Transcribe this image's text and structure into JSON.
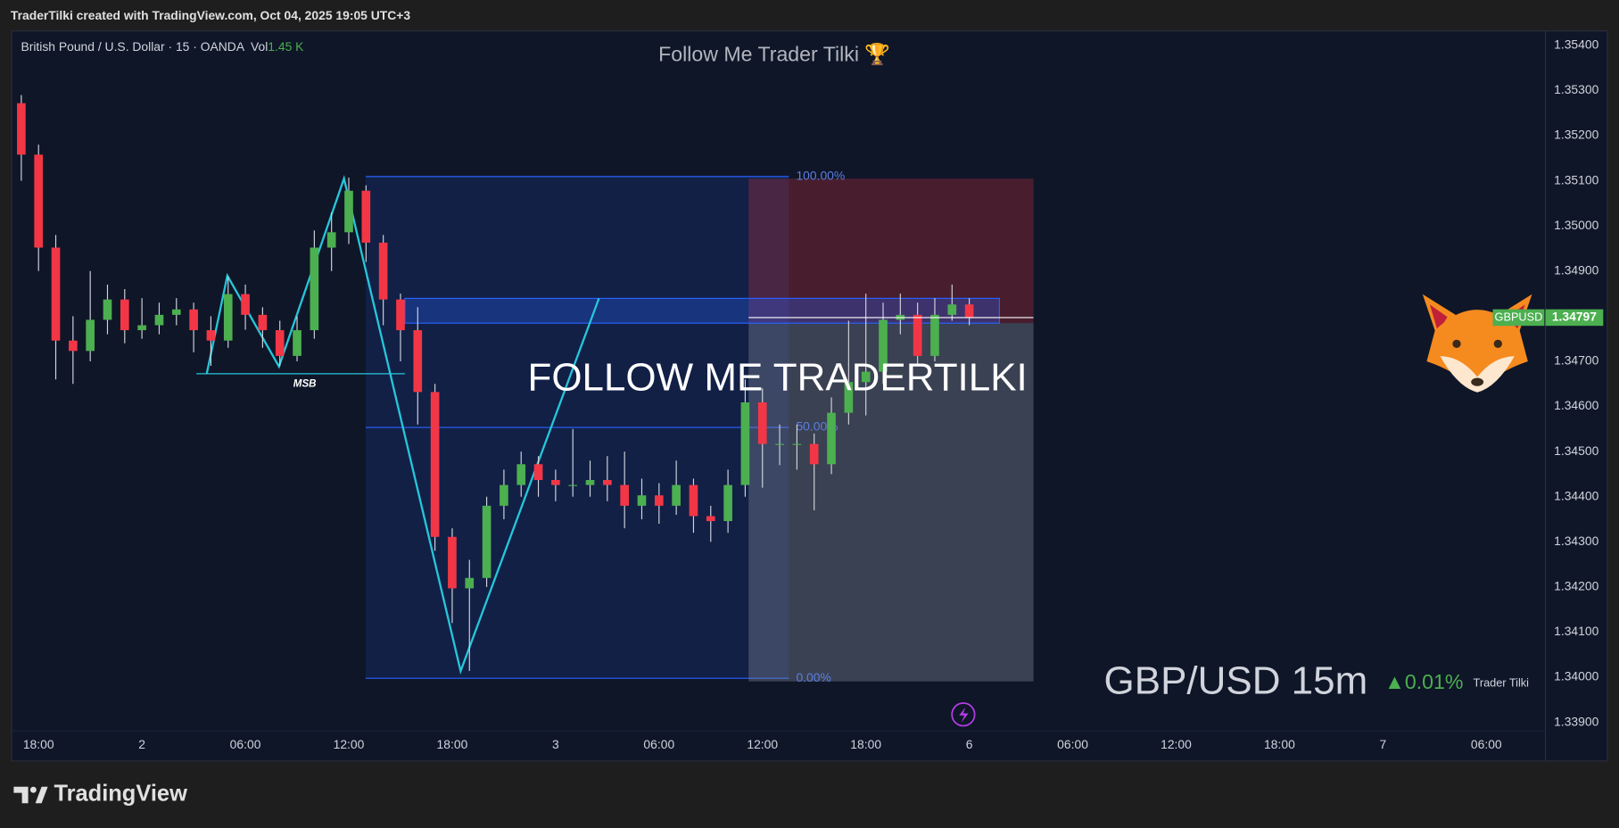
{
  "header": {
    "text": "TraderTilki created with TradingView.com, Oct 04, 2025 19:05 UTC+3"
  },
  "branding": {
    "logo": "TradingView"
  },
  "chart_data": {
    "type": "candlestick",
    "title": "Follow Me Trader Tilki 🏆",
    "symbol": "British Pound / U.S. Dollar · 15 · OANDA",
    "volume_label": "Vol",
    "volume": "1.45 K",
    "watermark": "FOLLOW ME TRADERTILKI",
    "pair_label": "GBP/USD 15m",
    "change": "▲0.01%",
    "author": "Trader Tilki",
    "msb_label": "MSB",
    "fib_labels": [
      "100.00%",
      "50.00%",
      "0.00%"
    ],
    "ticker": "GBPUSD",
    "last_price": 1.34797,
    "up_color": "#4caf50",
    "down_color": "#f23645",
    "wick_color": "#d1d4dc",
    "x": [
      -1,
      0,
      1,
      2,
      3,
      4,
      5,
      6,
      7,
      8,
      9,
      10,
      11,
      12,
      13,
      14,
      15,
      16,
      17,
      18,
      19,
      20,
      21,
      22,
      23,
      24,
      25,
      26,
      27,
      28,
      29,
      30,
      31,
      32,
      33,
      34,
      35,
      36,
      37,
      38,
      39,
      40,
      41,
      42,
      43,
      44,
      45,
      46,
      47,
      48,
      49,
      50,
      51,
      52,
      53,
      54
    ],
    "open": [
      1.35272,
      1.35158,
      1.34952,
      1.34746,
      1.34723,
      1.34792,
      1.34837,
      1.34769,
      1.3478,
      1.34803,
      1.34815,
      1.34769,
      1.34746,
      1.34849,
      1.34803,
      1.34769,
      1.34712,
      1.34769,
      1.34952,
      1.34986,
      1.35078,
      1.34963,
      1.34837,
      1.34769,
      1.34632,
      1.34311,
      1.34197,
      1.3422,
      1.3438,
      1.34426,
      1.34472,
      1.34437,
      1.34426,
      1.34426,
      1.34437,
      1.34426,
      1.3438,
      1.34403,
      1.3438,
      1.34426,
      1.34357,
      1.34346,
      1.34426,
      1.34609,
      1.34517,
      1.34517,
      1.34517,
      1.34472,
      1.34586,
      1.34654,
      1.34677,
      1.34792,
      1.34803,
      1.34712,
      1.34803,
      1.34826
    ],
    "high": [
      1.3529,
      1.3518,
      1.3498,
      1.348,
      1.349,
      1.3487,
      1.3486,
      1.3484,
      1.3483,
      1.3484,
      1.3483,
      1.348,
      1.34888,
      1.3487,
      1.3482,
      1.3479,
      1.348,
      1.3499,
      1.3503,
      1.35107,
      1.3509,
      1.3498,
      1.3485,
      1.3482,
      1.3465,
      1.3433,
      1.3426,
      1.344,
      1.3446,
      1.345,
      1.3449,
      1.3446,
      1.3455,
      1.3448,
      1.3449,
      1.345,
      1.3444,
      1.3443,
      1.3448,
      1.3444,
      1.3438,
      1.3446,
      1.3466,
      1.3464,
      1.3456,
      1.3456,
      1.3454,
      1.3462,
      1.3479,
      1.3485,
      1.3483,
      1.3485,
      1.3483,
      1.3484,
      1.3487,
      1.3484
    ],
    "low": [
      1.351,
      1.349,
      1.3466,
      1.3465,
      1.347,
      1.3476,
      1.3474,
      1.3475,
      1.3476,
      1.3478,
      1.3472,
      1.3469,
      1.3473,
      1.3477,
      1.3473,
      1.34689,
      1.347,
      1.3475,
      1.349,
      1.3496,
      1.3492,
      1.3478,
      1.347,
      1.3456,
      1.3428,
      1.3412,
      1.34014,
      1.342,
      1.3435,
      1.344,
      1.344,
      1.3439,
      1.344,
      1.344,
      1.3439,
      1.3433,
      1.3435,
      1.3434,
      1.3436,
      1.3432,
      1.343,
      1.3432,
      1.344,
      1.3442,
      1.3447,
      1.3446,
      1.3437,
      1.3445,
      1.3456,
      1.3458,
      1.3465,
      1.3476,
      1.3469,
      1.347,
      1.3479,
      1.3478
    ],
    "close": [
      1.35158,
      1.34952,
      1.34746,
      1.34723,
      1.34792,
      1.34837,
      1.34769,
      1.3478,
      1.34803,
      1.34815,
      1.34769,
      1.34746,
      1.34849,
      1.34803,
      1.34769,
      1.34712,
      1.34769,
      1.34952,
      1.34986,
      1.35078,
      1.34963,
      1.34837,
      1.34769,
      1.34632,
      1.34311,
      1.34197,
      1.3422,
      1.3438,
      1.34426,
      1.34472,
      1.34437,
      1.34426,
      1.34426,
      1.34437,
      1.34426,
      1.3438,
      1.34403,
      1.3438,
      1.34426,
      1.34357,
      1.34346,
      1.34426,
      1.34609,
      1.34517,
      1.34517,
      1.34517,
      1.34472,
      1.34586,
      1.34654,
      1.34677,
      1.34792,
      1.34803,
      1.34712,
      1.34803,
      1.34826,
      1.34797
    ],
    "xlim": [
      -1.5,
      90.9
    ],
    "xticks": [
      {
        "value": 0,
        "label": "18:00"
      },
      {
        "value": 6,
        "label": "2"
      },
      {
        "value": 12,
        "label": "06:00"
      },
      {
        "value": 18,
        "label": "12:00"
      },
      {
        "value": 24,
        "label": "18:00"
      },
      {
        "value": 30,
        "label": "3"
      },
      {
        "value": 36,
        "label": "06:00"
      },
      {
        "value": 42,
        "label": "12:00"
      },
      {
        "value": 48,
        "label": "18:00"
      },
      {
        "value": 54,
        "label": "6"
      },
      {
        "value": 60,
        "label": "06:00"
      },
      {
        "value": 66,
        "label": "12:00"
      },
      {
        "value": 72,
        "label": "18:00"
      },
      {
        "value": 78,
        "label": "7"
      },
      {
        "value": 84,
        "label": "06:00"
      }
    ],
    "ylim": [
      1.33881,
      1.35432
    ],
    "yticks": [
      {
        "value": 1.354,
        "label": "1.35400"
      },
      {
        "value": 1.353,
        "label": "1.35300"
      },
      {
        "value": 1.352,
        "label": "1.35200"
      },
      {
        "value": 1.351,
        "label": "1.35100"
      },
      {
        "value": 1.35,
        "label": "1.35000"
      },
      {
        "value": 1.349,
        "label": "1.34900"
      },
      {
        "value": 1.348,
        "label": "1.34800"
      },
      {
        "value": 1.347,
        "label": "1.34700"
      },
      {
        "value": 1.346,
        "label": "1.34600"
      },
      {
        "value": 1.345,
        "label": "1.34500"
      },
      {
        "value": 1.344,
        "label": "1.34400"
      },
      {
        "value": 1.343,
        "label": "1.34300"
      },
      {
        "value": 1.342,
        "label": "1.34200"
      },
      {
        "value": 1.341,
        "label": "1.34100"
      },
      {
        "value": 1.34,
        "label": "1.34000"
      },
      {
        "value": 1.339,
        "label": "1.33900"
      }
    ],
    "grid": false
  }
}
